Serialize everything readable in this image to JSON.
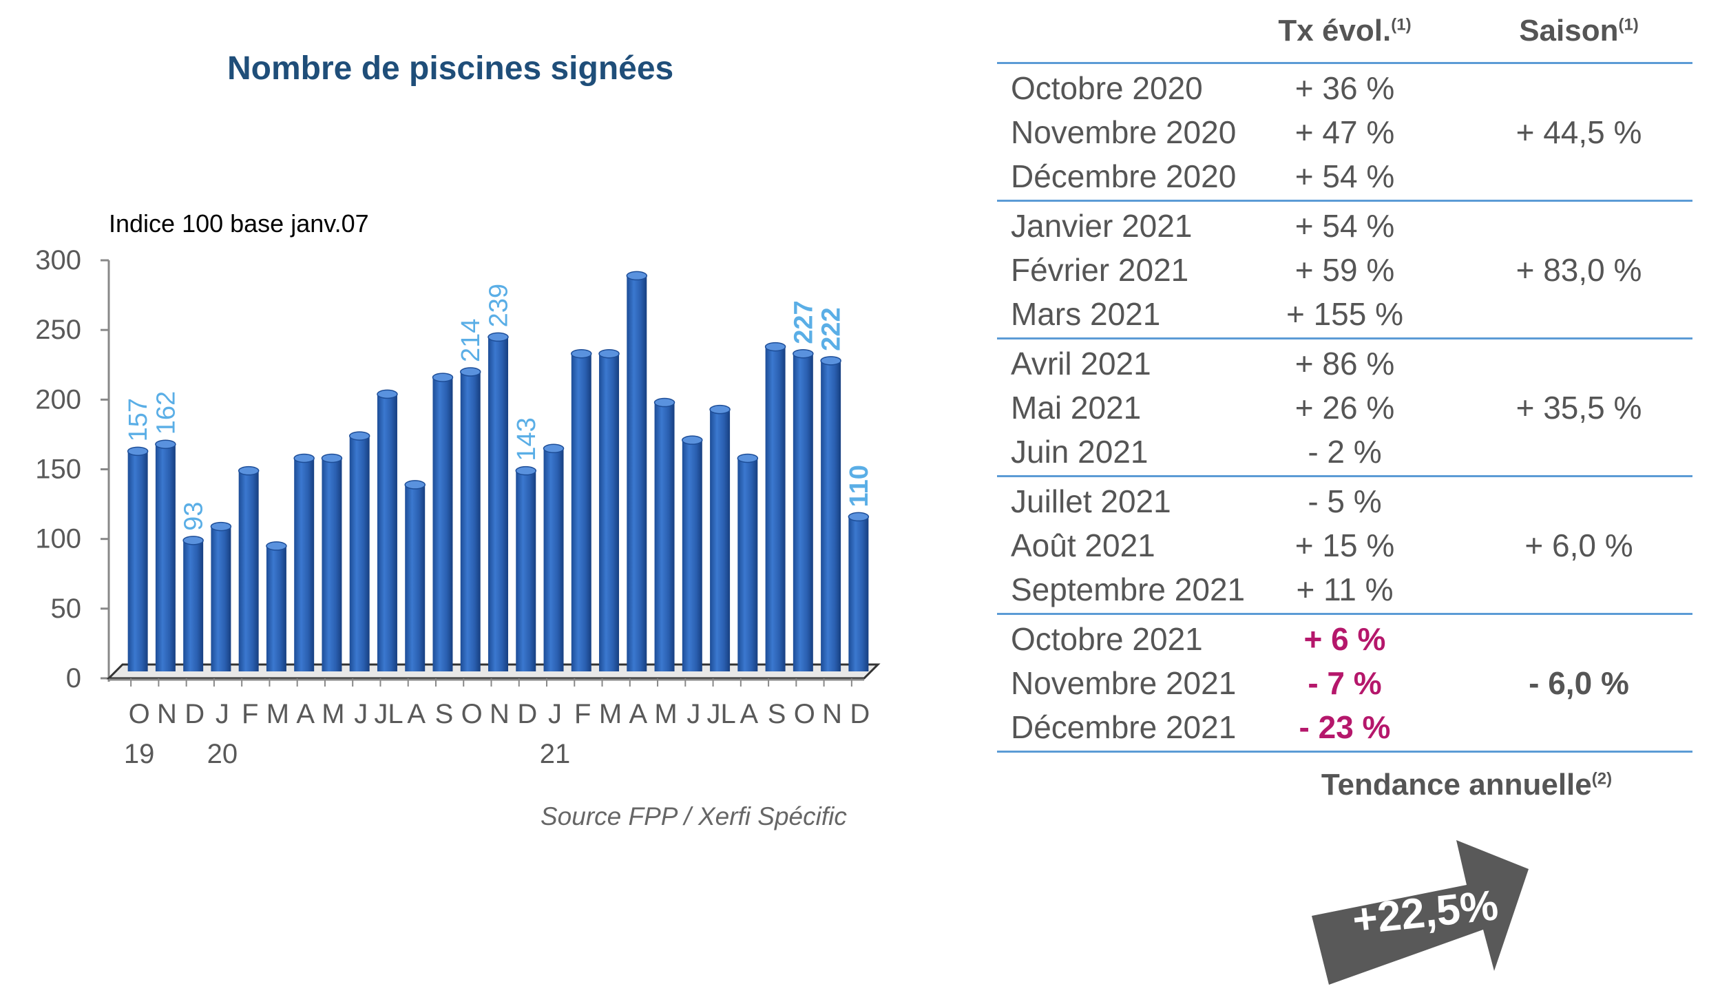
{
  "chart_data": {
    "type": "bar",
    "title": "Nombre de piscines signées",
    "ylabel": "Indice 100 base janv.07",
    "ylim": [
      0,
      300
    ],
    "y_ticks": [
      0,
      50,
      100,
      150,
      200,
      250,
      300
    ],
    "categories": [
      "O",
      "N",
      "D",
      "J",
      "F",
      "M",
      "A",
      "M",
      "J",
      "JL",
      "A",
      "S",
      "O",
      "N",
      "D",
      "J",
      "F",
      "M",
      "A",
      "M",
      "J",
      "JL",
      "A",
      "S",
      "O",
      "N",
      "D"
    ],
    "year_labels": [
      {
        "index": 0,
        "label": "19"
      },
      {
        "index": 3,
        "label": "20"
      },
      {
        "index": 15,
        "label": "21"
      }
    ],
    "values": [
      157,
      162,
      93,
      103,
      143,
      89,
      152,
      152,
      168,
      198,
      133,
      210,
      214,
      239,
      143,
      159,
      227,
      227,
      283,
      192,
      165,
      187,
      152,
      232,
      227,
      222,
      110
    ],
    "data_labels": [
      {
        "index": 0,
        "text": "157",
        "bold": false
      },
      {
        "index": 1,
        "text": "162",
        "bold": false
      },
      {
        "index": 2,
        "text": "93",
        "bold": false
      },
      {
        "index": 12,
        "text": "214",
        "bold": false
      },
      {
        "index": 13,
        "text": "239",
        "bold": false
      },
      {
        "index": 14,
        "text": "143",
        "bold": false
      },
      {
        "index": 24,
        "text": "227",
        "bold": true
      },
      {
        "index": 25,
        "text": "222",
        "bold": true
      },
      {
        "index": 26,
        "text": "110",
        "bold": true
      }
    ],
    "grid": false,
    "bar_color": "#2e62b0",
    "label_color": "#5aaee6"
  },
  "source": "Source FPP / Xerfi Spécific",
  "table": {
    "headers": {
      "rate": "Tx évol.",
      "rate_sup": "(1)",
      "season": "Saison",
      "season_sup": "(1)"
    },
    "groups": [
      {
        "season": "+ 44,5 %",
        "season_highlight": false,
        "rows": [
          {
            "month": "Octobre 2020",
            "rate": "+ 36 %",
            "highlight": false
          },
          {
            "month": "Novembre 2020",
            "rate": "+ 47 %",
            "highlight": false
          },
          {
            "month": "Décembre 2020",
            "rate": "+ 54 %",
            "highlight": false
          }
        ]
      },
      {
        "season": "+ 83,0 %",
        "season_highlight": false,
        "rows": [
          {
            "month": "Janvier 2021",
            "rate": "+ 54 %",
            "highlight": false
          },
          {
            "month": "Février 2021",
            "rate": "+ 59 %",
            "highlight": false
          },
          {
            "month": "Mars 2021",
            "rate": "+ 155 %",
            "highlight": false
          }
        ]
      },
      {
        "season": "+ 35,5 %",
        "season_highlight": false,
        "rows": [
          {
            "month": "Avril 2021",
            "rate": "+ 86 %",
            "highlight": false
          },
          {
            "month": "Mai 2021",
            "rate": "+ 26 %",
            "highlight": false
          },
          {
            "month": "Juin 2021",
            "rate": "- 2 %",
            "highlight": false
          }
        ]
      },
      {
        "season": "+ 6,0 %",
        "season_highlight": false,
        "rows": [
          {
            "month": "Juillet 2021",
            "rate": "- 5 %",
            "highlight": false
          },
          {
            "month": "Août 2021",
            "rate": "+ 15 %",
            "highlight": false
          },
          {
            "month": "Septembre 2021",
            "rate": "+ 11 %",
            "highlight": false
          }
        ]
      },
      {
        "season": "- 6,0 %",
        "season_highlight": true,
        "rows": [
          {
            "month": "Octobre 2021",
            "rate": "+ 6 %",
            "highlight": true
          },
          {
            "month": "Novembre 2021",
            "rate": "- 7 %",
            "highlight": true
          },
          {
            "month": "Décembre 2021",
            "rate": "- 23 %",
            "highlight": true
          }
        ]
      }
    ]
  },
  "trend": {
    "title": "Tendance annuelle",
    "title_sup": "(2)",
    "value": "+22,5%",
    "arrow_color": "#595959"
  }
}
